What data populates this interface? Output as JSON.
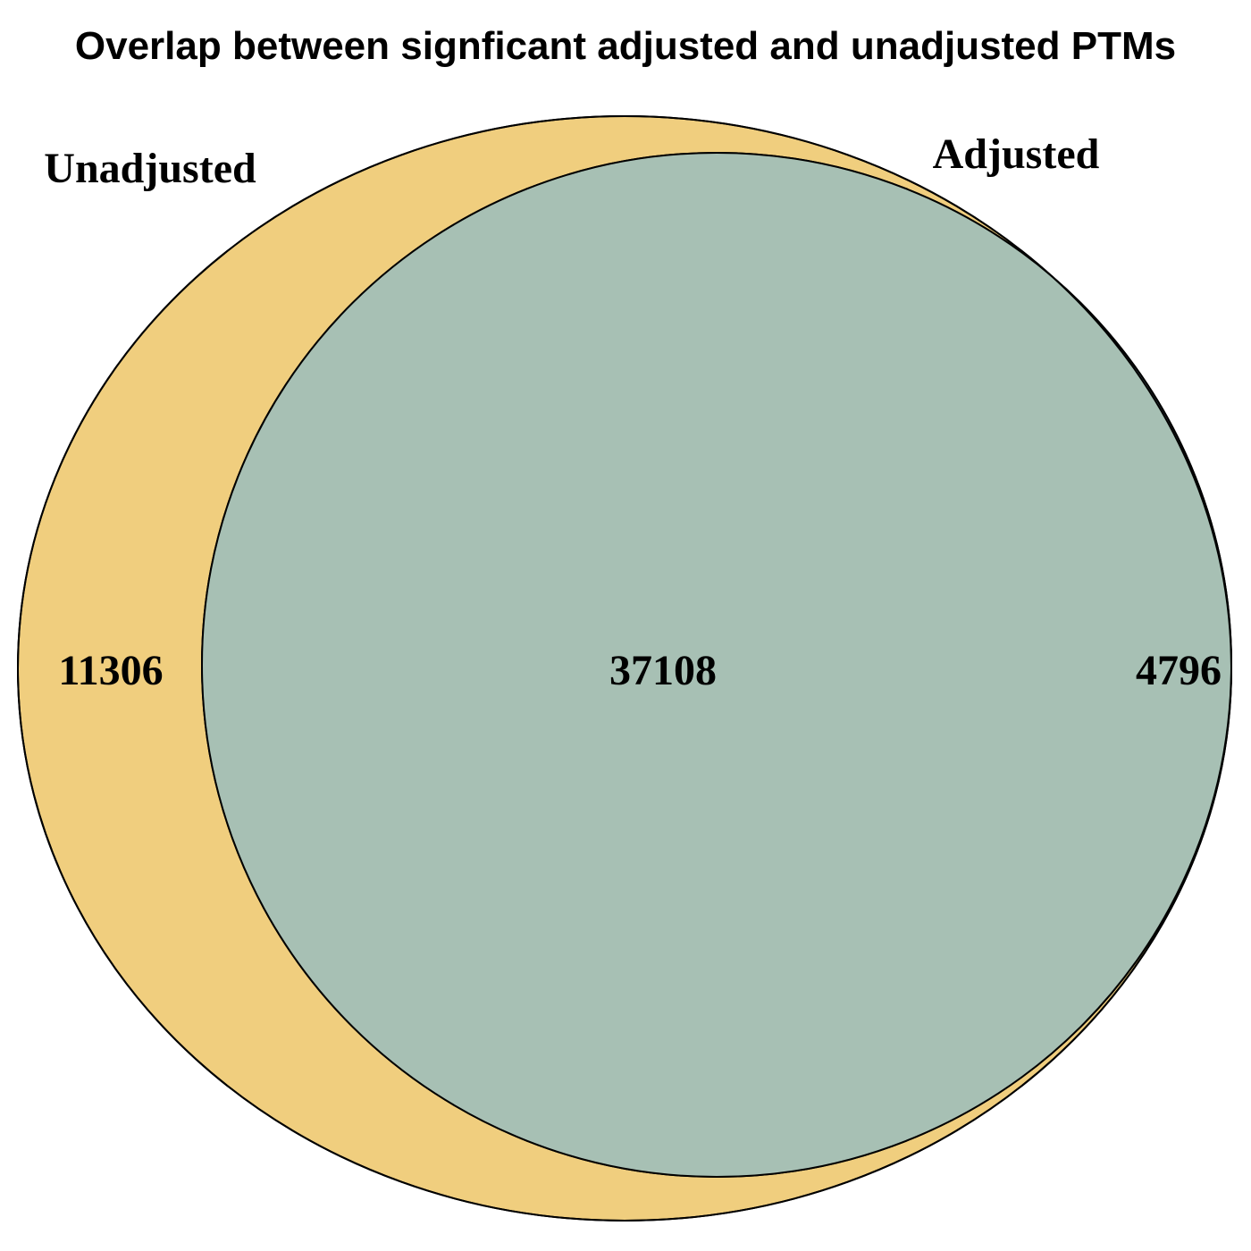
{
  "title": "Overlap between signficant adjusted and unadjusted PTMs",
  "sets": [
    {
      "name": "Unadjusted",
      "color": "#F0CE7E",
      "only_count": "11306"
    },
    {
      "name": "Adjusted",
      "color": "#ABD8F2",
      "only_count": "4796"
    }
  ],
  "overlap": {
    "count": "37108",
    "color": "#A7C0B4"
  },
  "outline_color": "#000000"
}
